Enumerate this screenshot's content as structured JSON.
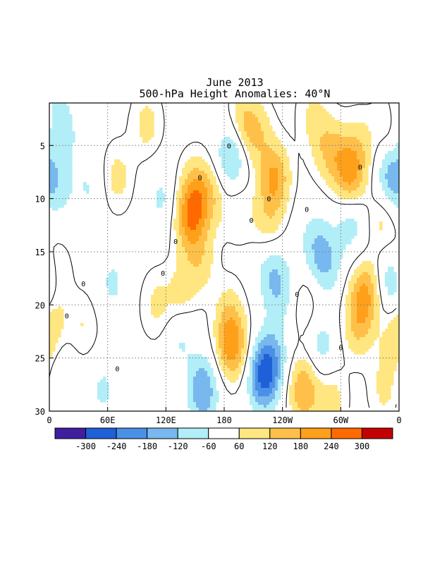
{
  "chart_data": {
    "type": "heatmap",
    "subtype": "hovmoller-contour",
    "title": "June 2013",
    "subtitle": "500-hPa Height Anomalies: 40°N",
    "xlabel": "",
    "ylabel": "",
    "x_ticks": [
      "0",
      "60E",
      "120E",
      "180",
      "120W",
      "60W",
      "0"
    ],
    "x_range_degrees_east": [
      0,
      360
    ],
    "y_ticks": [
      "5",
      "10",
      "15",
      "20",
      "25",
      "30"
    ],
    "y_range_day": [
      1,
      30
    ],
    "y_direction": "day increases downward",
    "grid": "dotted",
    "contour_label": "0",
    "colorbar": {
      "levels": [
        "-300",
        "-240",
        "-180",
        "-120",
        "-60",
        "60",
        "120",
        "180",
        "240",
        "300"
      ],
      "colors": [
        "#3f1fa0",
        "#1f5fd8",
        "#4a90e6",
        "#78b8ee",
        "#b2eef7",
        "#ffffff",
        "#ffe680",
        "#ffc04a",
        "#ffa01a",
        "#ff6a00",
        "#c40000"
      ]
    },
    "anomalies": [
      {
        "lon": 5,
        "day": 2,
        "value": -70
      },
      {
        "lon": 15,
        "day": 4,
        "value": -70
      },
      {
        "lon": 10,
        "day": 9,
        "value": -70
      },
      {
        "lon": 5,
        "day": 17,
        "value": 90
      },
      {
        "lon": 3,
        "day": 21,
        "value": 80
      },
      {
        "lon": 12,
        "day": 27,
        "value": -70
      },
      {
        "lon": 40,
        "day": 9,
        "value": -60
      },
      {
        "lon": 65,
        "day": 18,
        "value": -70
      },
      {
        "lon": 35,
        "day": 22,
        "value": 60
      },
      {
        "lon": 55,
        "day": 28,
        "value": -70
      },
      {
        "lon": 70,
        "day": 8,
        "value": 80
      },
      {
        "lon": 100,
        "day": 3,
        "value": 80
      },
      {
        "lon": 115,
        "day": 10,
        "value": -70
      },
      {
        "lon": 145,
        "day": 12,
        "value": 200
      },
      {
        "lon": 150,
        "day": 9,
        "value": 120
      },
      {
        "lon": 165,
        "day": 10,
        "value": 100
      },
      {
        "lon": 155,
        "day": 16,
        "value": 90
      },
      {
        "lon": 135,
        "day": 19,
        "value": 80
      },
      {
        "lon": 110,
        "day": 20,
        "value": 70
      },
      {
        "lon": 135,
        "day": 23,
        "value": -70
      },
      {
        "lon": 158,
        "day": 28,
        "value": -180
      },
      {
        "lon": 200,
        "day": 3,
        "value": 120
      },
      {
        "lon": 188,
        "day": 6,
        "value": -150
      },
      {
        "lon": 215,
        "day": 4,
        "value": 90
      },
      {
        "lon": 232,
        "day": 8,
        "value": 180
      },
      {
        "lon": 225,
        "day": 12,
        "value": 90
      },
      {
        "lon": 195,
        "day": 11,
        "value": 60
      },
      {
        "lon": 188,
        "day": 24,
        "value": 200
      },
      {
        "lon": 185,
        "day": 21,
        "value": 90
      },
      {
        "lon": 240,
        "day": 19,
        "value": -80
      },
      {
        "lon": 228,
        "day": 17,
        "value": -100
      },
      {
        "lon": 220,
        "day": 27,
        "value": -210
      },
      {
        "lon": 228,
        "day": 25,
        "value": -140
      },
      {
        "lon": 262,
        "day": 28,
        "value": 180
      },
      {
        "lon": 270,
        "day": 2,
        "value": 60
      },
      {
        "lon": 283,
        "day": 5,
        "value": 80
      },
      {
        "lon": 296,
        "day": 6,
        "value": 90
      },
      {
        "lon": 310,
        "day": 8,
        "value": 180
      },
      {
        "lon": 320,
        "day": 5,
        "value": 80
      },
      {
        "lon": 285,
        "day": 16,
        "value": -120
      },
      {
        "lon": 272,
        "day": 14,
        "value": -80
      },
      {
        "lon": 310,
        "day": 12,
        "value": -100
      },
      {
        "lon": 325,
        "day": 19,
        "value": 180
      },
      {
        "lon": 317,
        "day": 22,
        "value": 110
      },
      {
        "lon": 352,
        "day": 8,
        "value": -150
      },
      {
        "lon": 355,
        "day": 18,
        "value": -160
      },
      {
        "lon": 343,
        "day": 12,
        "value": 80
      },
      {
        "lon": 350,
        "day": 3,
        "value": 70
      },
      {
        "lon": 355,
        "day": 24,
        "value": 80
      },
      {
        "lon": 345,
        "day": 28,
        "value": 70
      },
      {
        "lon": 280,
        "day": 24,
        "value": -90
      },
      {
        "lon": 290,
        "day": 29,
        "value": 90
      },
      {
        "lon": 262,
        "day": 20,
        "value": 70
      }
    ]
  }
}
